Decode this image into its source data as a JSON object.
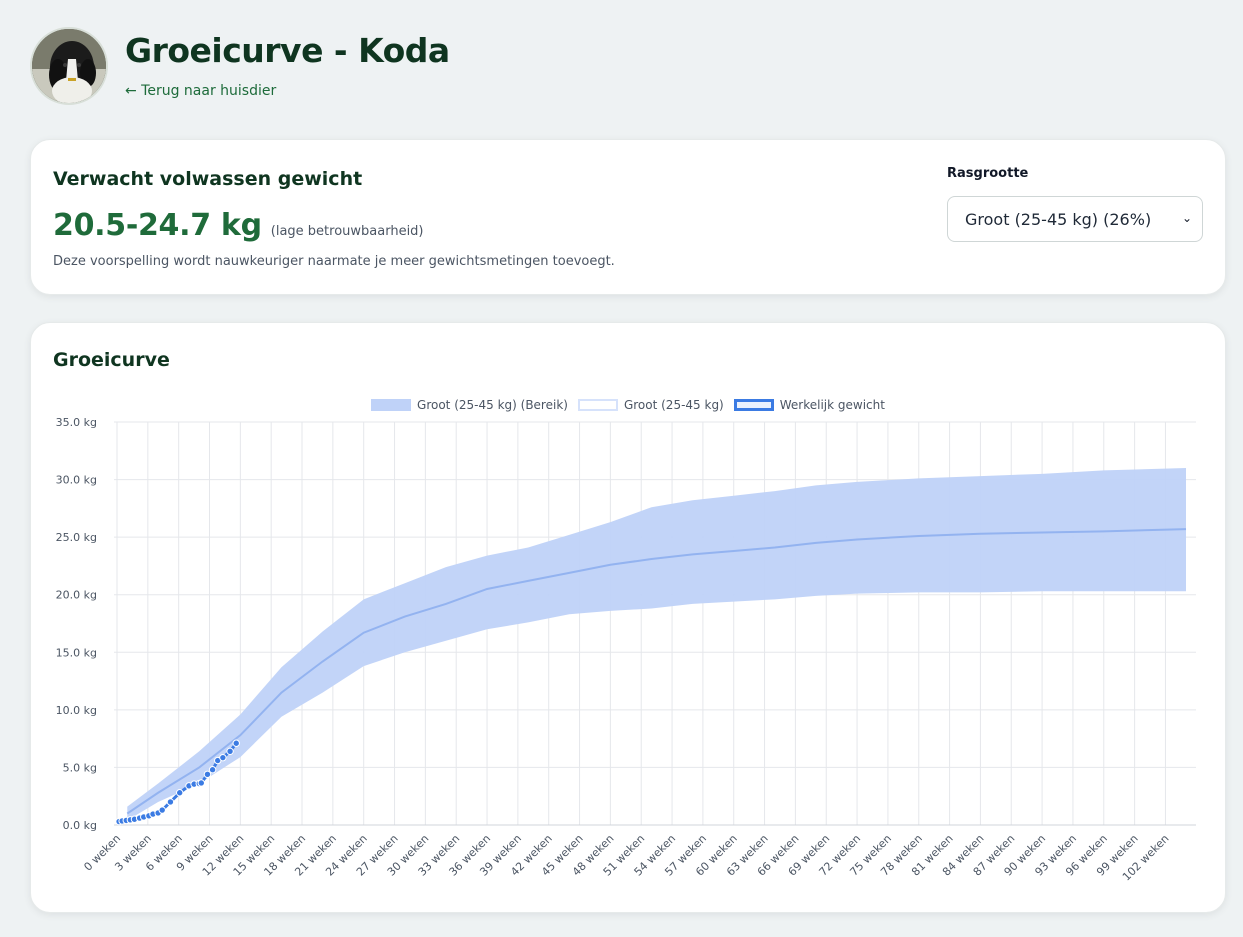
{
  "header": {
    "title": "Groeicurve - Koda",
    "back_link": "← Terug naar huisdier"
  },
  "prediction": {
    "title": "Verwacht volwassen gewicht",
    "value": "20.5-24.7 kg",
    "reliability": "(lage betrouwbaarheid)",
    "note": "Deze voorspelling wordt nauwkeuriger naarmate je meer gewichtsmetingen toevoegt.",
    "breed_label": "Rasgrootte",
    "breed_selected": "Groot (25-45 kg) (26%)"
  },
  "chart_section": {
    "title": "Groeicurve"
  },
  "colors": {
    "band": "#bfd2f8",
    "median": "#93b3f0",
    "actual": "#3b7be3",
    "grid": "#e5e7eb",
    "title_green": "#0f3520",
    "value_green": "#1f6b3a"
  },
  "chart_data": {
    "type": "line",
    "legend": [
      "Groot (25-45 kg) (Bereik)",
      "Groot (25-45 kg)",
      "Werkelijk gewicht"
    ],
    "y_ticks": [
      "0.0 kg",
      "5.0 kg",
      "10.0 kg",
      "15.0 kg",
      "20.0 kg",
      "25.0 kg",
      "30.0 kg",
      "35.0 kg"
    ],
    "ylim": [
      0,
      35
    ],
    "x_tick_labels": [
      "0 weken",
      "3 weken",
      "6 weken",
      "9 weken",
      "12 weken",
      "15 weken",
      "18 weken",
      "21 weken",
      "24 weken",
      "27 weken",
      "30 weken",
      "33 weken",
      "36 weken",
      "39 weken",
      "42 weken",
      "45 weken",
      "48 weken",
      "51 weken",
      "54 weken",
      "57 weken",
      "60 weken",
      "63 weken",
      "66 weken",
      "69 weken",
      "72 weken",
      "75 weken",
      "78 weken",
      "81 weken",
      "84 weken",
      "87 weken",
      "90 weken",
      "93 weken",
      "96 weken",
      "99 weken",
      "102 weken"
    ],
    "xlim_weeks": [
      0,
      104
    ],
    "series": [
      {
        "name": "Groot (25-45 kg) (Bereik)",
        "kind": "band",
        "weeks": [
          1,
          4,
          8,
          12,
          16,
          20,
          24,
          28,
          32,
          36,
          40,
          44,
          48,
          52,
          56,
          60,
          64,
          68,
          72,
          78,
          84,
          90,
          96,
          104
        ],
        "upper": [
          1.6,
          3.6,
          6.4,
          9.6,
          13.7,
          16.8,
          19.6,
          21.0,
          22.4,
          23.4,
          24.1,
          25.2,
          26.3,
          27.6,
          28.2,
          28.6,
          29.0,
          29.5,
          29.8,
          30.1,
          30.3,
          30.5,
          30.8,
          31.0
        ],
        "lower": [
          0.4,
          2.0,
          3.6,
          5.9,
          9.4,
          11.5,
          13.8,
          15.0,
          16.0,
          17.0,
          17.6,
          18.3,
          18.6,
          18.8,
          19.2,
          19.4,
          19.6,
          19.9,
          20.1,
          20.2,
          20.2,
          20.3,
          20.3,
          20.3
        ]
      },
      {
        "name": "Groot (25-45 kg)",
        "kind": "line",
        "weeks": [
          1,
          4,
          8,
          12,
          16,
          20,
          24,
          28,
          32,
          36,
          40,
          44,
          48,
          52,
          56,
          60,
          64,
          68,
          72,
          78,
          84,
          90,
          96,
          104
        ],
        "values": [
          1.0,
          2.8,
          5.0,
          7.8,
          11.5,
          14.2,
          16.7,
          18.1,
          19.2,
          20.5,
          21.2,
          21.9,
          22.6,
          23.1,
          23.5,
          23.8,
          24.1,
          24.5,
          24.8,
          25.1,
          25.3,
          25.4,
          25.5,
          25.7
        ]
      },
      {
        "name": "Werkelijk gewicht",
        "kind": "points",
        "weeks": [
          0.2,
          0.5,
          0.9,
          1.3,
          1.7,
          2.2,
          2.6,
          3.1,
          3.5,
          4.0,
          4.4,
          5.2,
          6.1,
          7.0,
          7.5,
          8.0,
          8.2,
          8.8,
          9.3,
          9.8,
          10.3,
          11.0,
          11.6
        ],
        "values": [
          0.3,
          0.35,
          0.4,
          0.45,
          0.5,
          0.6,
          0.7,
          0.8,
          0.95,
          1.05,
          1.3,
          2.0,
          2.8,
          3.4,
          3.55,
          3.6,
          3.65,
          4.4,
          4.8,
          5.6,
          5.85,
          6.4,
          7.1
        ]
      }
    ]
  }
}
